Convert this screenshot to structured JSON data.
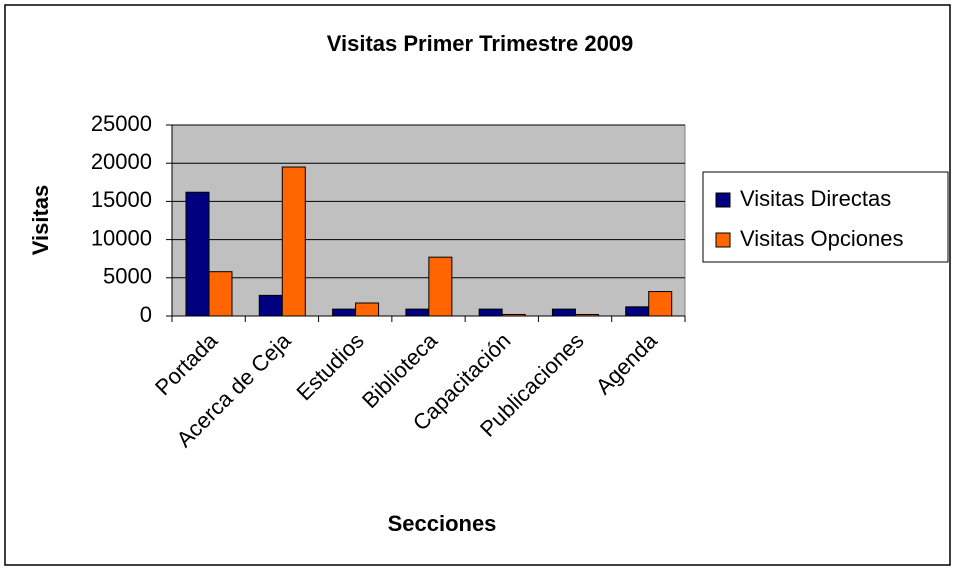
{
  "chart_data": {
    "type": "bar",
    "title": "Visitas Primer Trimestre 2009",
    "x_label": "Secciones",
    "y_label": "Visitas",
    "categories": [
      "Portada",
      "Acerca de Ceja",
      "Estudios",
      "Biblioteca",
      "Capacitación",
      "Publicaciones",
      "Agenda"
    ],
    "series": [
      {
        "name": "Visitas Directas",
        "color": "#000080",
        "values": [
          16200,
          2700,
          900,
          900,
          900,
          900,
          1200
        ]
      },
      {
        "name": "Visitas Opciones",
        "color": "#ff6600",
        "values": [
          5800,
          19500,
          1700,
          7700,
          200,
          200,
          3200
        ]
      }
    ],
    "ylim": [
      0,
      25000
    ],
    "yticks": [
      0,
      5000,
      10000,
      15000,
      20000,
      25000
    ],
    "grid": true,
    "legend": "right"
  }
}
